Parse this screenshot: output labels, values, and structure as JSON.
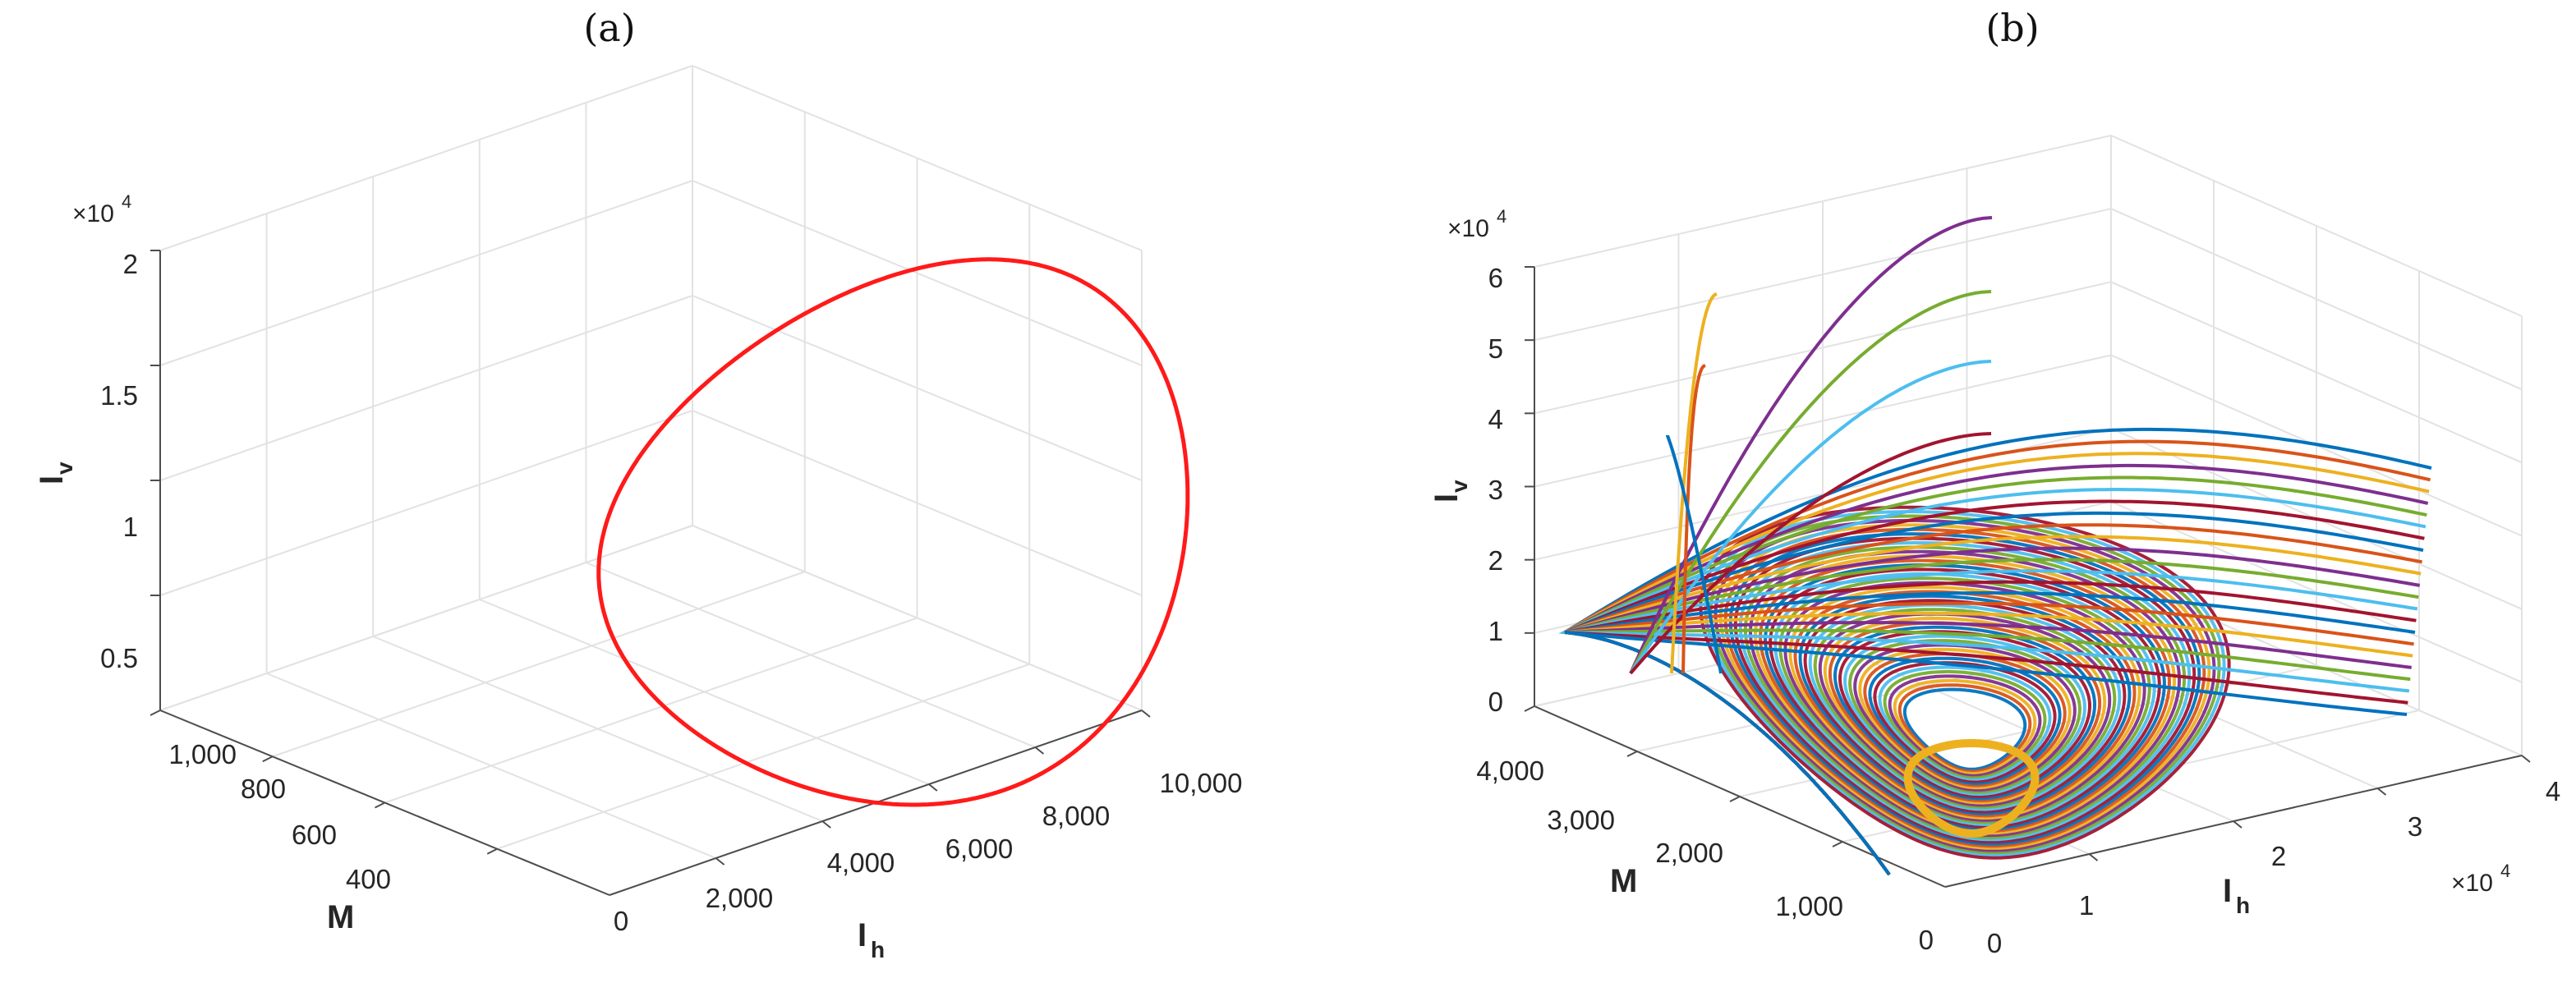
{
  "chart_data": [
    {
      "type": "line3d",
      "panel_label": "(a)",
      "zlabel": "I",
      "zlabel_sub": "v",
      "ylabel": "M",
      "xlabel": "I",
      "xlabel_sub": "h",
      "z_exponent_base": "×10",
      "z_exponent_power": "4",
      "xlim": [
        0,
        10000
      ],
      "ylim": [
        300,
        1050
      ],
      "zlim": [
        0.3,
        2.0
      ],
      "x_ticks": [
        "2,000",
        "4,000",
        "6,000",
        "8,000",
        "10,000"
      ],
      "x_tick_values": [
        2000,
        4000,
        6000,
        8000,
        10000
      ],
      "y_ticks": [
        "400",
        "600",
        "800",
        "1,000"
      ],
      "y_tick_values": [
        400,
        600,
        800,
        1000
      ],
      "y_zero_label": "0",
      "z_ticks": [
        "0.5",
        "1",
        "1.5",
        "2"
      ],
      "z_tick_values": [
        0.5,
        1.0,
        1.5,
        2.0
      ],
      "grid": true,
      "series": [
        {
          "name": "limit cycle",
          "color": "#ff1a1a",
          "description": "closed periodic orbit",
          "center": [
            5800,
            330,
            1.2
          ],
          "amplitude": [
            4200,
            320,
            0.62
          ]
        }
      ]
    },
    {
      "type": "line3d",
      "panel_label": "(b)",
      "zlabel": "I",
      "zlabel_sub": "v",
      "ylabel": "M",
      "xlabel": "I",
      "xlabel_sub": "h",
      "z_exponent_base": "×10",
      "z_exponent_power": "4",
      "x_exponent_base": "×10",
      "x_exponent_power": "4",
      "xlim": [
        0,
        4
      ],
      "ylim": [
        0,
        4200
      ],
      "zlim": [
        0,
        6
      ],
      "x_ticks": [
        "0",
        "1",
        "2",
        "3",
        "4"
      ],
      "x_tick_values": [
        0,
        1,
        2,
        3,
        4
      ],
      "y_ticks": [
        "0",
        "1,000",
        "2,000",
        "3,000",
        "4,000"
      ],
      "y_tick_values": [
        0,
        1000,
        2000,
        3000,
        4000
      ],
      "z_ticks": [
        "0",
        "1",
        "2",
        "3",
        "4",
        "5",
        "6"
      ],
      "z_tick_values": [
        0,
        1,
        2,
        3,
        4,
        5,
        6
      ],
      "grid": true,
      "colors": [
        "#0072BD",
        "#D95319",
        "#EDB120",
        "#7E2F8E",
        "#77AC30",
        "#4DBEEE",
        "#A2142F"
      ],
      "attractor_color": "#EDB120",
      "description": "many trajectories from different initial conditions spiraling into a limit cycle"
    }
  ]
}
